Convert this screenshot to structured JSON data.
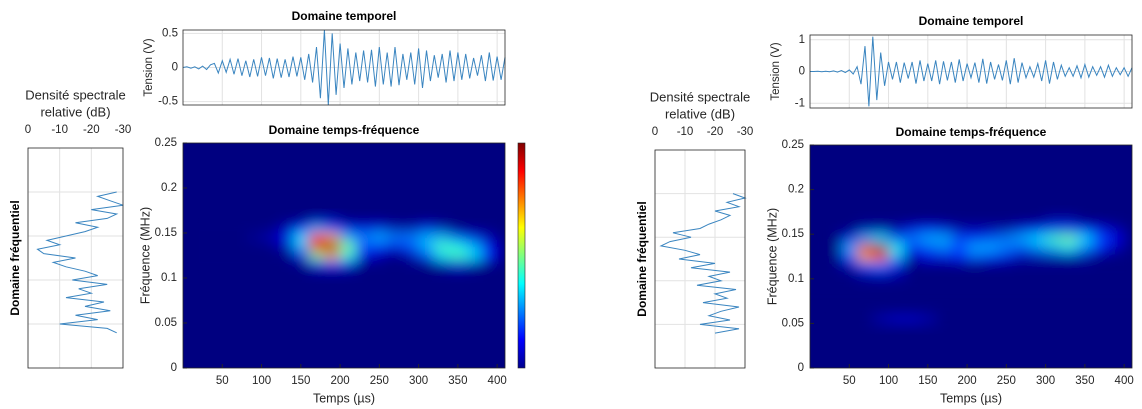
{
  "chart_data": [
    {
      "type": "line",
      "title": "Domaine temporel",
      "ylabel": "Tension (V)",
      "color": "#3a85c0",
      "grid": true,
      "x": [
        0,
        5,
        10,
        15,
        20,
        25,
        30,
        35,
        40,
        45,
        50,
        55,
        60,
        65,
        70,
        75,
        80,
        85,
        90,
        95,
        100,
        105,
        110,
        115,
        120,
        125,
        130,
        135,
        140,
        145,
        150,
        155,
        160,
        165,
        170,
        175,
        180,
        185,
        190,
        195,
        200,
        205,
        210,
        215,
        220,
        225,
        230,
        235,
        240,
        245,
        250,
        255,
        260,
        265,
        270,
        275,
        280,
        285,
        290,
        295,
        300,
        305,
        310,
        315,
        320,
        325,
        330,
        335,
        340,
        345,
        350,
        355,
        360,
        365,
        370,
        375,
        380,
        385,
        390,
        395,
        400,
        405,
        410
      ],
      "values": [
        0,
        0.01,
        -0.01,
        0.01,
        -0.02,
        0.02,
        -0.03,
        0.04,
        0.06,
        -0.08,
        0.1,
        -0.07,
        0.12,
        -0.1,
        0.13,
        -0.12,
        0.1,
        -0.14,
        0.12,
        -0.13,
        0.15,
        -0.12,
        0.14,
        -0.16,
        0.13,
        -0.15,
        0.12,
        -0.14,
        0.16,
        -0.13,
        0.15,
        -0.18,
        0.2,
        -0.22,
        0.3,
        -0.45,
        0.55,
        -0.55,
        0.5,
        -0.4,
        0.35,
        -0.3,
        0.28,
        -0.25,
        0.22,
        -0.2,
        0.25,
        -0.22,
        0.26,
        -0.28,
        0.3,
        -0.25,
        0.22,
        -0.28,
        0.3,
        -0.26,
        0.2,
        -0.18,
        0.22,
        -0.25,
        0.28,
        -0.3,
        0.25,
        -0.2,
        0.18,
        -0.15,
        0.2,
        -0.22,
        0.25,
        -0.2,
        0.22,
        -0.18,
        0.2,
        -0.16,
        0.14,
        -0.12,
        0.18,
        -0.2,
        0.22,
        -0.19,
        0.16,
        -0.18,
        0.15
      ],
      "xlim": [
        0,
        410
      ],
      "xticks": [
        50,
        100,
        150,
        200,
        250,
        300,
        350,
        400
      ],
      "ylim": [
        -0.55,
        0.55
      ],
      "yticks": [
        -0.5,
        0,
        0.5
      ]
    },
    {
      "type": "spectrum",
      "xlabel": [
        "Densité spectrale",
        "relative (dB)"
      ],
      "ylabel": "Domaine fréquentiel",
      "color": "#3a85c0",
      "grid": true,
      "y": [
        0.04,
        0.045,
        0.05,
        0.055,
        0.06,
        0.065,
        0.07,
        0.075,
        0.08,
        0.085,
        0.09,
        0.095,
        0.1,
        0.105,
        0.11,
        0.115,
        0.12,
        0.125,
        0.13,
        0.135,
        0.14,
        0.145,
        0.15,
        0.155,
        0.16,
        0.165,
        0.17,
        0.175,
        0.18,
        0.185,
        0.19,
        0.195,
        0.2
      ],
      "values": [
        -28,
        -25,
        -10,
        -22,
        -15,
        -26,
        -18,
        -24,
        -12,
        -20,
        -16,
        -25,
        -14,
        -22,
        -18,
        -12,
        -8,
        -15,
        -5,
        -3,
        -10,
        -6,
        -12,
        -18,
        -22,
        -15,
        -25,
        -28,
        -20,
        -30,
        -26,
        -22,
        -28
      ],
      "xlim": [
        0,
        -30
      ],
      "xticks": [
        0,
        -10,
        -20,
        -30
      ],
      "ylim": [
        0,
        0.25
      ],
      "yticks": [
        0.05,
        0.1,
        0.15,
        0.2
      ]
    },
    {
      "type": "heatmap",
      "title": "Domaine temps-fréquence",
      "xlabel": "Temps (µs)",
      "ylabel": "Fréquence (MHz)",
      "colormap": "jet",
      "colorbar": true,
      "x": [
        10,
        30,
        50,
        70,
        90,
        110,
        130,
        150,
        170,
        190,
        210,
        230,
        250,
        270,
        290,
        310,
        330,
        350,
        370,
        390,
        410
      ],
      "y": [
        0.105,
        0.115,
        0.125,
        0.135,
        0.145,
        0.155,
        0.165
      ],
      "z": [
        [
          0,
          0,
          0,
          0,
          0,
          0,
          0,
          0,
          0,
          0,
          0,
          0,
          0,
          0,
          0,
          0,
          0,
          0,
          0,
          0,
          0
        ],
        [
          0,
          0,
          0,
          0,
          0,
          0,
          0,
          0,
          0.1,
          0.15,
          0.1,
          0,
          0,
          0,
          0,
          0,
          0.05,
          0.1,
          0.05,
          0,
          0
        ],
        [
          0,
          0,
          0,
          0,
          0,
          0,
          0,
          0.1,
          0.5,
          0.7,
          0.4,
          0.1,
          0.05,
          0,
          0.05,
          0.2,
          0.35,
          0.45,
          0.35,
          0.15,
          0
        ],
        [
          0,
          0,
          0,
          0,
          0,
          0,
          0.05,
          0.3,
          0.9,
          1,
          0.5,
          0.2,
          0.15,
          0.1,
          0.2,
          0.3,
          0.45,
          0.4,
          0.3,
          0.1,
          0
        ],
        [
          0,
          0,
          0,
          0,
          0.02,
          0.05,
          0.1,
          0.35,
          0.85,
          0.7,
          0.3,
          0.25,
          0.3,
          0.25,
          0.25,
          0.3,
          0.3,
          0.2,
          0.1,
          0.05,
          0
        ],
        [
          0,
          0,
          0,
          0,
          0,
          0,
          0.05,
          0.15,
          0.3,
          0.2,
          0.1,
          0.1,
          0.1,
          0.05,
          0.05,
          0.1,
          0.05,
          0,
          0,
          0,
          0
        ],
        [
          0,
          0,
          0,
          0,
          0,
          0,
          0,
          0,
          0.05,
          0.05,
          0,
          0,
          0,
          0,
          0,
          0,
          0,
          0,
          0,
          0,
          0
        ]
      ],
      "xlim": [
        0,
        410
      ],
      "xticks": [
        50,
        100,
        150,
        200,
        250,
        300,
        350,
        400
      ],
      "ylim": [
        0,
        0.25
      ],
      "yticks": [
        0,
        0.05,
        0.1,
        0.15,
        0.2,
        0.25
      ]
    },
    {
      "type": "line",
      "title": "Domaine temporel",
      "ylabel": "Tension (V)",
      "color": "#3a85c0",
      "grid": true,
      "x": [
        0,
        5,
        10,
        15,
        20,
        25,
        30,
        35,
        40,
        45,
        50,
        55,
        60,
        65,
        70,
        75,
        80,
        85,
        90,
        95,
        100,
        105,
        110,
        115,
        120,
        125,
        130,
        135,
        140,
        145,
        150,
        155,
        160,
        165,
        170,
        175,
        180,
        185,
        190,
        195,
        200,
        205,
        210,
        215,
        220,
        225,
        230,
        235,
        240,
        245,
        250,
        255,
        260,
        265,
        270,
        275,
        280,
        285,
        290,
        295,
        300,
        305,
        310,
        315,
        320,
        325,
        330,
        335,
        340,
        345,
        350,
        355,
        360,
        365,
        370,
        375,
        380,
        385,
        390,
        395,
        400,
        405,
        410
      ],
      "values": [
        0,
        0,
        0.01,
        -0.01,
        0.01,
        -0.01,
        0.02,
        -0.02,
        0.03,
        -0.03,
        0.05,
        -0.08,
        0.15,
        -0.4,
        0.8,
        -1.1,
        1.1,
        -0.9,
        0.6,
        -0.45,
        0.3,
        -0.25,
        0.3,
        -0.35,
        0.28,
        -0.22,
        0.3,
        -0.38,
        0.35,
        -0.3,
        0.25,
        -0.3,
        0.35,
        -0.4,
        0.32,
        -0.28,
        0.3,
        -0.35,
        0.38,
        -0.3,
        0.25,
        -0.2,
        0.28,
        -0.35,
        0.4,
        -0.38,
        0.3,
        -0.25,
        0.22,
        -0.28,
        0.35,
        -0.4,
        0.42,
        -0.35,
        0.28,
        -0.2,
        0.15,
        -0.18,
        0.25,
        -0.3,
        0.35,
        -0.38,
        0.3,
        -0.25,
        0.2,
        -0.15,
        0.12,
        -0.15,
        0.18,
        -0.2,
        0.22,
        -0.18,
        0.15,
        -0.12,
        0.15,
        -0.18,
        0.2,
        -0.15,
        0.12,
        -0.1,
        0.12,
        -0.15,
        0.12
      ],
      "xlim": [
        0,
        410
      ],
      "xticks": [
        50,
        100,
        150,
        200,
        250,
        300,
        350,
        400
      ],
      "ylim": [
        -1.15,
        1.15
      ],
      "yticks": [
        -1,
        0,
        1
      ]
    },
    {
      "type": "spectrum",
      "xlabel": [
        "Densité spectrale",
        "relative (dB)"
      ],
      "ylabel": "Domaine fréquentiel",
      "color": "#3a85c0",
      "grid": true,
      "y": [
        0.04,
        0.045,
        0.05,
        0.055,
        0.06,
        0.065,
        0.07,
        0.075,
        0.08,
        0.085,
        0.09,
        0.095,
        0.1,
        0.105,
        0.11,
        0.115,
        0.12,
        0.125,
        0.13,
        0.135,
        0.14,
        0.145,
        0.15,
        0.155,
        0.16,
        0.165,
        0.17,
        0.175,
        0.18,
        0.185,
        0.19,
        0.195,
        0.2
      ],
      "values": [
        -20,
        -28,
        -15,
        -25,
        -18,
        -22,
        -28,
        -16,
        -24,
        -20,
        -27,
        -14,
        -22,
        -18,
        -25,
        -12,
        -20,
        -8,
        -15,
        -10,
        -2,
        -5,
        -12,
        -6,
        -15,
        -18,
        -22,
        -25,
        -20,
        -28,
        -24,
        -30,
        -26
      ],
      "xlim": [
        0,
        -30
      ],
      "xticks": [
        0,
        -10,
        -20,
        -30
      ],
      "ylim": [
        0,
        0.25
      ],
      "yticks": [
        0.05,
        0.1,
        0.15,
        0.2
      ]
    },
    {
      "type": "heatmap",
      "title": "Domaine temps-fréquence",
      "xlabel": "Temps (µs)",
      "ylabel": "Fréquence (MHz)",
      "colormap": "jet",
      "colorbar": false,
      "x": [
        10,
        30,
        50,
        70,
        90,
        110,
        130,
        150,
        170,
        190,
        210,
        230,
        250,
        270,
        290,
        310,
        330,
        350,
        370,
        390,
        410
      ],
      "y": [
        0.055,
        0.105,
        0.115,
        0.125,
        0.135,
        0.145,
        0.155,
        0.165
      ],
      "z": [
        [
          0,
          0,
          0,
          0,
          0.05,
          0.08,
          0.08,
          0.05,
          0,
          0,
          0,
          0,
          0,
          0,
          0,
          0,
          0,
          0,
          0,
          0,
          0
        ],
        [
          0,
          0,
          0,
          0.05,
          0.08,
          0.05,
          0,
          0,
          0,
          0,
          0,
          0,
          0,
          0,
          0,
          0,
          0,
          0,
          0,
          0,
          0
        ],
        [
          0,
          0,
          0.05,
          0.2,
          0.25,
          0.1,
          0,
          0,
          0,
          0,
          0,
          0,
          0,
          0,
          0,
          0,
          0,
          0,
          0,
          0,
          0
        ],
        [
          0,
          0,
          0.2,
          0.7,
          0.8,
          0.3,
          0.05,
          0.1,
          0.1,
          0.15,
          0.2,
          0.15,
          0.1,
          0.05,
          0.05,
          0.05,
          0.05,
          0.05,
          0,
          0,
          0
        ],
        [
          0,
          0,
          0.3,
          0.9,
          1,
          0.4,
          0.15,
          0.2,
          0.25,
          0.2,
          0.3,
          0.3,
          0.25,
          0.2,
          0.25,
          0.3,
          0.35,
          0.25,
          0.15,
          0.05,
          0
        ],
        [
          0,
          0,
          0.1,
          0.3,
          0.35,
          0.2,
          0.25,
          0.3,
          0.3,
          0.2,
          0.15,
          0.2,
          0.25,
          0.3,
          0.35,
          0.45,
          0.5,
          0.35,
          0.2,
          0.1,
          0
        ],
        [
          0,
          0,
          0,
          0.05,
          0.05,
          0.05,
          0.1,
          0.15,
          0.1,
          0.05,
          0.05,
          0.05,
          0.05,
          0.1,
          0.15,
          0.2,
          0.2,
          0.15,
          0.1,
          0.05,
          0
        ],
        [
          0,
          0,
          0,
          0,
          0,
          0,
          0,
          0,
          0,
          0,
          0,
          0,
          0,
          0,
          0,
          0.05,
          0.05,
          0,
          0,
          0,
          0
        ]
      ],
      "xlim": [
        0,
        410
      ],
      "xticks": [
        50,
        100,
        150,
        200,
        250,
        300,
        350,
        400
      ],
      "ylim": [
        0,
        0.25
      ],
      "yticks": [
        0,
        0.05,
        0.1,
        0.15,
        0.2,
        0.25
      ]
    }
  ]
}
